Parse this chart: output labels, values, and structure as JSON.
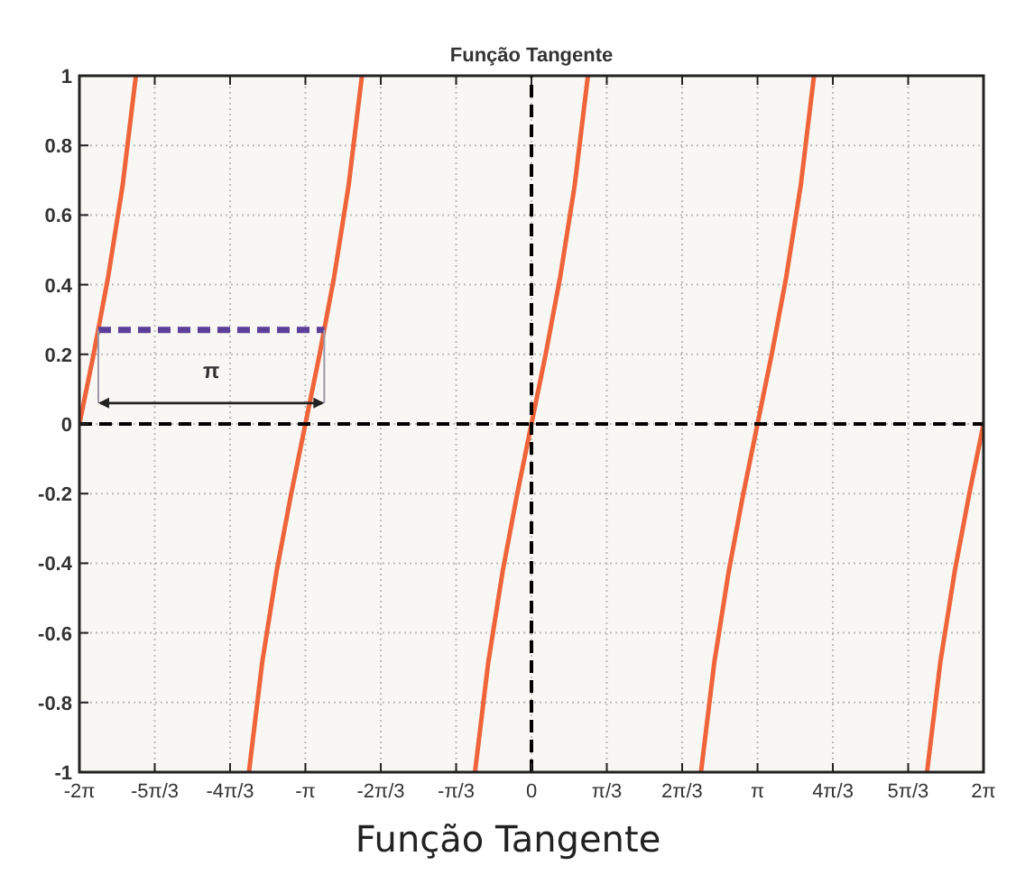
{
  "chart_data": {
    "type": "line",
    "title": "Função Tangente",
    "annotations": [
      "π",
      "Função Tangente"
    ],
    "xlim": [
      -6.283,
      6.283
    ],
    "xticks": [
      {
        "value": -6.283,
        "label": "-2π"
      },
      {
        "value": -5.236,
        "label": "-5π/3"
      },
      {
        "value": -4.189,
        "label": "-4π/3"
      },
      {
        "value": -3.142,
        "label": "-π"
      },
      {
        "value": -2.094,
        "label": "-2π/3"
      },
      {
        "value": -1.047,
        "label": "-π/3"
      },
      0,
      {
        "value": 1.047,
        "label": "π/3"
      },
      {
        "value": 2.094,
        "label": "2π/3"
      },
      {
        "value": 3.142,
        "label": "π"
      },
      {
        "value": 4.189,
        "label": "4π/3"
      },
      {
        "value": 5.236,
        "label": "5π/3"
      },
      {
        "value": 6.283,
        "label": "2π"
      }
    ],
    "ylim": [
      -1,
      1
    ],
    "yticks": [
      -1,
      -0.8,
      -0.6,
      -0.4,
      -0.2,
      0,
      0.2,
      0.4,
      0.6,
      0.8,
      1
    ],
    "grid": true,
    "series": [
      {
        "color": "#f0643a",
        "x": [
          -6.283,
          -6.083,
          -5.883,
          -5.683,
          -5.498
        ],
        "values": [
          0,
          0.203,
          0.423,
          0.684,
          1
        ]
      },
      {
        "color": "#f0643a",
        "x": [
          -3.927,
          -3.742,
          -3.542,
          -3.342,
          -3.142,
          -2.942,
          -2.742,
          -2.542,
          -2.356
        ],
        "values": [
          -1,
          -0.684,
          -0.423,
          -0.203,
          0,
          0.203,
          0.423,
          0.684,
          1
        ]
      },
      {
        "color": "#f0643a",
        "x": [
          -0.785,
          -0.6,
          -0.4,
          -0.2,
          0,
          0.2,
          0.4,
          0.6,
          0.785
        ],
        "values": [
          -1,
          -0.684,
          -0.423,
          -0.203,
          0,
          0.203,
          0.423,
          0.684,
          1
        ]
      },
      {
        "color": "#f0643a",
        "x": [
          2.356,
          2.542,
          2.742,
          2.942,
          3.142,
          3.342,
          3.542,
          3.742,
          3.927
        ],
        "values": [
          -1,
          -0.684,
          -0.423,
          -0.203,
          0,
          0.203,
          0.423,
          0.684,
          1
        ]
      },
      {
        "color": "#f0643a",
        "x": [
          5.498,
          5.683,
          5.883,
          6.083,
          6.283
        ],
        "values": [
          -1,
          -0.684,
          -0.423,
          -0.203,
          0
        ]
      },
      {
        "color": "#000000",
        "line_style": "dashed",
        "x": [
          -6.283,
          6.283
        ],
        "values": [
          0,
          0
        ]
      },
      {
        "color": "#000000",
        "line_style": "dashed",
        "x": [
          0,
          0
        ],
        "values": [
          -1,
          1
        ]
      },
      {
        "color": "#5b3f9a",
        "line_style": "dashed",
        "x": [
          -6.02,
          -2.88
        ],
        "values": [
          0.27,
          0.27
        ]
      }
    ]
  }
}
